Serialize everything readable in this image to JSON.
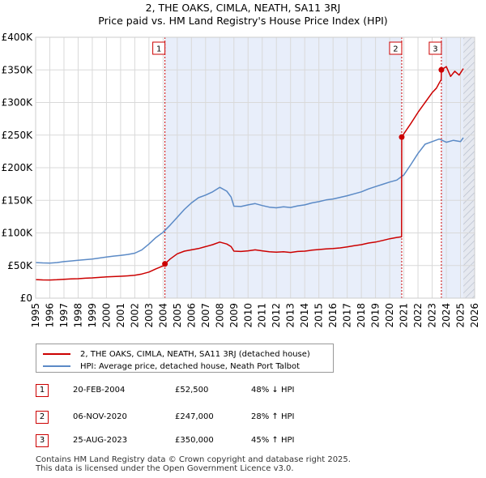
{
  "chart_data": {
    "type": "line",
    "title": "2, THE OAKS, CIMLA, NEATH, SA11 3RJ",
    "subtitle": "Price paid vs. HM Land Registry's House Price Index (HPI)",
    "xlabel": "",
    "ylabel": "",
    "xlim": [
      1995,
      2026
    ],
    "ylim": [
      0,
      400000
    ],
    "x_ticks": [
      "1995",
      "1996",
      "1997",
      "1998",
      "1999",
      "2000",
      "2001",
      "2002",
      "2003",
      "2004",
      "2005",
      "2006",
      "2007",
      "2008",
      "2009",
      "2010",
      "2011",
      "2012",
      "2013",
      "2014",
      "2015",
      "2016",
      "2017",
      "2018",
      "2019",
      "2020",
      "2021",
      "2022",
      "2023",
      "2024",
      "2025",
      "2026"
    ],
    "y_ticks": [
      {
        "value": 0,
        "label": "£0"
      },
      {
        "value": 50000,
        "label": "£50K"
      },
      {
        "value": 100000,
        "label": "£100K"
      },
      {
        "value": 150000,
        "label": "£150K"
      },
      {
        "value": 200000,
        "label": "£200K"
      },
      {
        "value": 250000,
        "label": "£250K"
      },
      {
        "value": 300000,
        "label": "£300K"
      },
      {
        "value": 350000,
        "label": "£350K"
      },
      {
        "value": 400000,
        "label": "£400K"
      }
    ],
    "grid": true,
    "series": [
      {
        "name": "2, THE OAKS, CIMLA, NEATH, SA11 3RJ (detached house)",
        "color": "#cc0000",
        "x": [
          1995.0,
          1995.5,
          1996.0,
          1996.5,
          1997.0,
          1997.5,
          1998.0,
          1998.5,
          1999.0,
          1999.5,
          2000.0,
          2000.5,
          2001.0,
          2001.5,
          2002.0,
          2002.5,
          2003.0,
          2003.5,
          2004.0,
          2004.13,
          2004.5,
          2005.0,
          2005.5,
          2006.0,
          2006.5,
          2007.0,
          2007.5,
          2008.0,
          2008.5,
          2008.8,
          2009.0,
          2009.5,
          2010.0,
          2010.5,
          2011.0,
          2011.5,
          2012.0,
          2012.5,
          2013.0,
          2013.5,
          2014.0,
          2014.5,
          2015.0,
          2015.5,
          2016.0,
          2016.5,
          2017.0,
          2017.5,
          2018.0,
          2018.5,
          2019.0,
          2019.5,
          2020.0,
          2020.5,
          2020.84,
          2020.85,
          2021.0,
          2021.5,
          2022.0,
          2022.5,
          2023.0,
          2023.3,
          2023.5,
          2023.64,
          2023.65,
          2024.0,
          2024.3,
          2024.6,
          2024.9,
          2025.2
        ],
        "values": [
          28500,
          28000,
          27800,
          28200,
          29000,
          29500,
          29800,
          30500,
          31000,
          31800,
          32500,
          33000,
          33500,
          34200,
          35000,
          37000,
          40000,
          45000,
          49500,
          52500,
          60000,
          68000,
          72000,
          74000,
          76000,
          79000,
          82000,
          86000,
          83000,
          79000,
          72000,
          71500,
          72500,
          74000,
          72500,
          71000,
          70500,
          71000,
          70000,
          71500,
          72000,
          73500,
          74500,
          75500,
          76000,
          77000,
          78500,
          80500,
          82000,
          84500,
          86000,
          88500,
          91000,
          93000,
          94000,
          247000,
          252000,
          268000,
          285000,
          300000,
          315000,
          322000,
          330000,
          335000,
          350000,
          355000,
          340000,
          348000,
          342000,
          352000
        ]
      },
      {
        "name": "HPI: Average price, detached house, Neath Port Talbot",
        "color": "#5b8ac6",
        "x": [
          1995.0,
          1995.5,
          1996.0,
          1996.5,
          1997.0,
          1997.5,
          1998.0,
          1998.5,
          1999.0,
          1999.5,
          2000.0,
          2000.5,
          2001.0,
          2001.5,
          2002.0,
          2002.5,
          2003.0,
          2003.5,
          2004.0,
          2004.5,
          2005.0,
          2005.5,
          2006.0,
          2006.5,
          2007.0,
          2007.5,
          2008.0,
          2008.5,
          2008.8,
          2009.0,
          2009.5,
          2010.0,
          2010.5,
          2011.0,
          2011.5,
          2012.0,
          2012.5,
          2013.0,
          2013.5,
          2014.0,
          2014.5,
          2015.0,
          2015.5,
          2016.0,
          2016.5,
          2017.0,
          2017.5,
          2018.0,
          2018.5,
          2019.0,
          2019.5,
          2020.0,
          2020.5,
          2021.0,
          2021.5,
          2022.0,
          2022.5,
          2023.0,
          2023.5,
          2024.0,
          2024.5,
          2025.0,
          2025.2
        ],
        "values": [
          54500,
          54000,
          53800,
          54500,
          56000,
          57000,
          58000,
          59000,
          60000,
          61500,
          63000,
          64500,
          65500,
          67000,
          69000,
          74000,
          83000,
          93000,
          101000,
          112000,
          124000,
          136000,
          146000,
          154000,
          158000,
          163000,
          170000,
          164000,
          155000,
          141000,
          140500,
          143000,
          145000,
          142000,
          139500,
          138500,
          140000,
          139000,
          141500,
          143000,
          146000,
          148000,
          150500,
          152000,
          154500,
          157000,
          160000,
          163000,
          167500,
          171000,
          174500,
          178000,
          181000,
          189000,
          205000,
          222000,
          236000,
          240000,
          244000,
          239000,
          242000,
          240000,
          246000
        ]
      }
    ],
    "annotations": [
      {
        "label": "1",
        "x": 2004.13,
        "value": 52500
      },
      {
        "label": "2",
        "x": 2020.85,
        "value": 247000
      },
      {
        "label": "3",
        "x": 2023.65,
        "value": 350000
      }
    ],
    "shaded_regions": [
      [
        2004.13,
        2020.85
      ],
      [
        2023.65,
        2025.2
      ]
    ],
    "hatched_region": [
      2025.2,
      2026
    ]
  },
  "legend": [
    {
      "label": "2, THE OAKS, CIMLA, NEATH, SA11 3RJ (detached house)",
      "color": "#cc0000"
    },
    {
      "label": "HPI: Average price, detached house, Neath Port Talbot",
      "color": "#5b8ac6"
    }
  ],
  "transactions": [
    {
      "id": "1",
      "date": "20-FEB-2004",
      "price": "£52,500",
      "hpi": "48% ↓ HPI"
    },
    {
      "id": "2",
      "date": "06-NOV-2020",
      "price": "£247,000",
      "hpi": "28% ↑ HPI"
    },
    {
      "id": "3",
      "date": "25-AUG-2023",
      "price": "£350,000",
      "hpi": "45% ↑ HPI"
    }
  ],
  "footer": {
    "line1": "Contains HM Land Registry data © Crown copyright and database right 2025.",
    "line2": "This data is licensed under the Open Government Licence v3.0."
  }
}
